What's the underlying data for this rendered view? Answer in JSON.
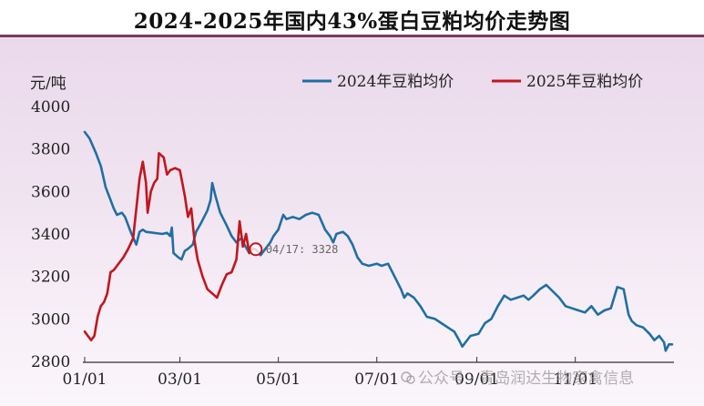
{
  "chart_data": {
    "type": "line",
    "title": "2024-2025年国内43%蛋白豆粕均价走势图",
    "ylabel": "元/吨",
    "xlabel": "",
    "ylim": [
      2800,
      4000
    ],
    "yticks": [
      2800,
      3000,
      3200,
      3400,
      3600,
      3800,
      4000
    ],
    "x_domain": [
      "01/01",
      "12/31"
    ],
    "xticks": [
      "01/01",
      "03/01",
      "05/01",
      "07/01",
      "09/01",
      "11/01"
    ],
    "grid": false,
    "legend_position": "top-right",
    "series": [
      {
        "name": "2024年豆粕均价",
        "color": "#1f6fa3",
        "points": [
          [
            "01/01",
            3880
          ],
          [
            "01/04",
            3850
          ],
          [
            "01/08",
            3780
          ],
          [
            "01/11",
            3720
          ],
          [
            "01/14",
            3620
          ],
          [
            "01/17",
            3560
          ],
          [
            "01/19",
            3520
          ],
          [
            "01/21",
            3490
          ],
          [
            "01/24",
            3500
          ],
          [
            "01/26",
            3480
          ],
          [
            "01/30",
            3400
          ],
          [
            "02/02",
            3350
          ],
          [
            "02/04",
            3410
          ],
          [
            "02/06",
            3420
          ],
          [
            "02/08",
            3410
          ],
          [
            "02/18",
            3400
          ],
          [
            "02/21",
            3405
          ],
          [
            "02/23",
            3390
          ],
          [
            "02/24",
            3430
          ],
          [
            "02/25",
            3310
          ],
          [
            "02/28",
            3290
          ],
          [
            "03/02",
            3280
          ],
          [
            "03/04",
            3320
          ],
          [
            "03/06",
            3330
          ],
          [
            "03/09",
            3350
          ],
          [
            "03/11",
            3410
          ],
          [
            "03/14",
            3450
          ],
          [
            "03/18",
            3510
          ],
          [
            "03/20",
            3560
          ],
          [
            "03/21",
            3640
          ],
          [
            "03/23",
            3580
          ],
          [
            "03/26",
            3500
          ],
          [
            "03/30",
            3440
          ],
          [
            "04/02",
            3390
          ],
          [
            "04/05",
            3360
          ],
          [
            "04/08",
            3380
          ],
          [
            "04/10",
            3350
          ],
          [
            "04/13",
            3310
          ],
          [
            "04/15",
            3330
          ],
          [
            "04/17",
            3328
          ],
          [
            "04/20",
            3300
          ],
          [
            "04/24",
            3340
          ],
          [
            "04/25",
            3350
          ],
          [
            "04/26",
            3360
          ],
          [
            "04/28",
            3390
          ],
          [
            "05/01",
            3420
          ],
          [
            "05/04",
            3490
          ],
          [
            "05/06",
            3470
          ],
          [
            "05/10",
            3480
          ],
          [
            "05/14",
            3470
          ],
          [
            "05/18",
            3490
          ],
          [
            "05/22",
            3500
          ],
          [
            "05/26",
            3490
          ],
          [
            "05/30",
            3420
          ],
          [
            "06/02",
            3390
          ],
          [
            "06/04",
            3360
          ],
          [
            "06/06",
            3400
          ],
          [
            "06/10",
            3410
          ],
          [
            "06/13",
            3390
          ],
          [
            "06/16",
            3350
          ],
          [
            "06/19",
            3290
          ],
          [
            "06/22",
            3260
          ],
          [
            "06/26",
            3250
          ],
          [
            "07/01",
            3260
          ],
          [
            "07/04",
            3250
          ],
          [
            "07/08",
            3260
          ],
          [
            "07/12",
            3200
          ],
          [
            "07/16",
            3140
          ],
          [
            "07/18",
            3100
          ],
          [
            "07/20",
            3120
          ],
          [
            "07/24",
            3100
          ],
          [
            "07/28",
            3060
          ],
          [
            "08/01",
            3010
          ],
          [
            "08/06",
            3000
          ],
          [
            "08/10",
            2980
          ],
          [
            "08/14",
            2960
          ],
          [
            "08/18",
            2940
          ],
          [
            "08/21",
            2900
          ],
          [
            "08/23",
            2870
          ],
          [
            "08/25",
            2890
          ],
          [
            "08/28",
            2920
          ],
          [
            "09/02",
            2930
          ],
          [
            "09/06",
            2980
          ],
          [
            "09/10",
            3000
          ],
          [
            "09/14",
            3060
          ],
          [
            "09/18",
            3110
          ],
          [
            "09/22",
            3090
          ],
          [
            "09/26",
            3100
          ],
          [
            "09/30",
            3110
          ],
          [
            "10/03",
            3090
          ],
          [
            "10/06",
            3110
          ],
          [
            "10/10",
            3140
          ],
          [
            "10/14",
            3160
          ],
          [
            "10/18",
            3130
          ],
          [
            "10/22",
            3100
          ],
          [
            "10/26",
            3060
          ],
          [
            "10/30",
            3050
          ],
          [
            "11/03",
            3040
          ],
          [
            "11/07",
            3030
          ],
          [
            "11/11",
            3060
          ],
          [
            "11/15",
            3020
          ],
          [
            "11/19",
            3040
          ],
          [
            "11/23",
            3050
          ],
          [
            "11/27",
            3150
          ],
          [
            "12/01",
            3140
          ],
          [
            "12/04",
            3020
          ],
          [
            "12/06",
            2990
          ],
          [
            "12/09",
            2970
          ],
          [
            "12/13",
            2960
          ],
          [
            "12/17",
            2930
          ],
          [
            "12/20",
            2900
          ],
          [
            "12/23",
            2920
          ],
          [
            "12/26",
            2890
          ],
          [
            "12/27",
            2850
          ],
          [
            "12/29",
            2880
          ],
          [
            "12/31",
            2880
          ]
        ]
      },
      {
        "name": "2025年豆粕均价",
        "color": "#c0171d",
        "points": [
          [
            "01/01",
            2940
          ],
          [
            "01/03",
            2920
          ],
          [
            "01/05",
            2900
          ],
          [
            "01/07",
            2920
          ],
          [
            "01/09",
            3010
          ],
          [
            "01/11",
            3060
          ],
          [
            "01/13",
            3080
          ],
          [
            "01/15",
            3120
          ],
          [
            "01/17",
            3220
          ],
          [
            "01/19",
            3230
          ],
          [
            "01/22",
            3260
          ],
          [
            "01/25",
            3290
          ],
          [
            "01/28",
            3330
          ],
          [
            "01/31",
            3380
          ],
          [
            "02/02",
            3520
          ],
          [
            "02/04",
            3660
          ],
          [
            "02/06",
            3740
          ],
          [
            "02/08",
            3640
          ],
          [
            "02/09",
            3500
          ],
          [
            "02/11",
            3600
          ],
          [
            "02/13",
            3640
          ],
          [
            "02/15",
            3660
          ],
          [
            "02/16",
            3780
          ],
          [
            "02/19",
            3760
          ],
          [
            "02/21",
            3680
          ],
          [
            "02/23",
            3700
          ],
          [
            "02/26",
            3710
          ],
          [
            "03/01",
            3700
          ],
          [
            "03/04",
            3580
          ],
          [
            "03/06",
            3480
          ],
          [
            "03/08",
            3520
          ],
          [
            "03/10",
            3370
          ],
          [
            "03/12",
            3280
          ],
          [
            "03/15",
            3200
          ],
          [
            "03/18",
            3140
          ],
          [
            "03/21",
            3120
          ],
          [
            "03/24",
            3100
          ],
          [
            "03/27",
            3160
          ],
          [
            "03/30",
            3210
          ],
          [
            "04/02",
            3220
          ],
          [
            "04/05",
            3280
          ],
          [
            "04/07",
            3460
          ],
          [
            "04/09",
            3340
          ],
          [
            "04/11",
            3400
          ],
          [
            "04/13",
            3310
          ],
          [
            "04/15",
            3330
          ],
          [
            "04/17",
            3328
          ]
        ]
      }
    ],
    "annotations": [
      {
        "text": "04/17: 3328",
        "series": "2025年豆粕均价",
        "x": "04/17",
        "y": 3328
      }
    ]
  },
  "watermark": {
    "text": "公众号 · 青岛润达生物家禽信息"
  }
}
